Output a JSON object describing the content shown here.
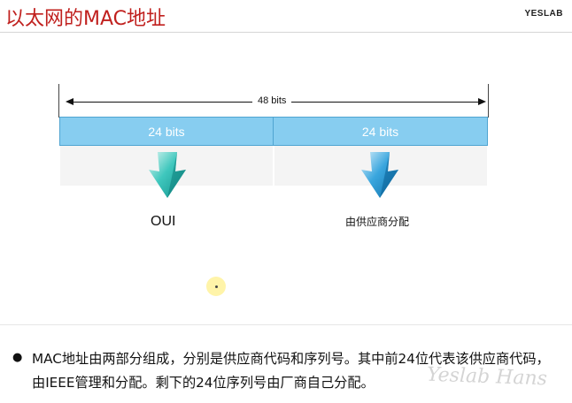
{
  "header": {
    "title": "以太网的MAC地址",
    "brand": "YESLAB"
  },
  "diagram": {
    "total_label": "48 bits",
    "segments": [
      {
        "label": "24 bits"
      },
      {
        "label": "24 bits"
      }
    ],
    "left_caption": "OUI",
    "right_caption": "由供应商分配",
    "colors": {
      "segment_fill": "#87cdf0",
      "segment_border": "#4fa4d1",
      "left_arrow": "#2ab9b3",
      "right_arrow": "#1f8fc9"
    },
    "icons": {
      "left": "down-arrow-icon",
      "right": "down-arrow-icon"
    }
  },
  "body": {
    "bullet": "●",
    "text": "MAC地址由两部分组成，分别是供应商代码和序列号。其中前24位代表该供应商代码，由IEEE管理和分配。剩下的24位序列号由厂商自己分配。"
  },
  "watermark": "Yeslab Hans"
}
